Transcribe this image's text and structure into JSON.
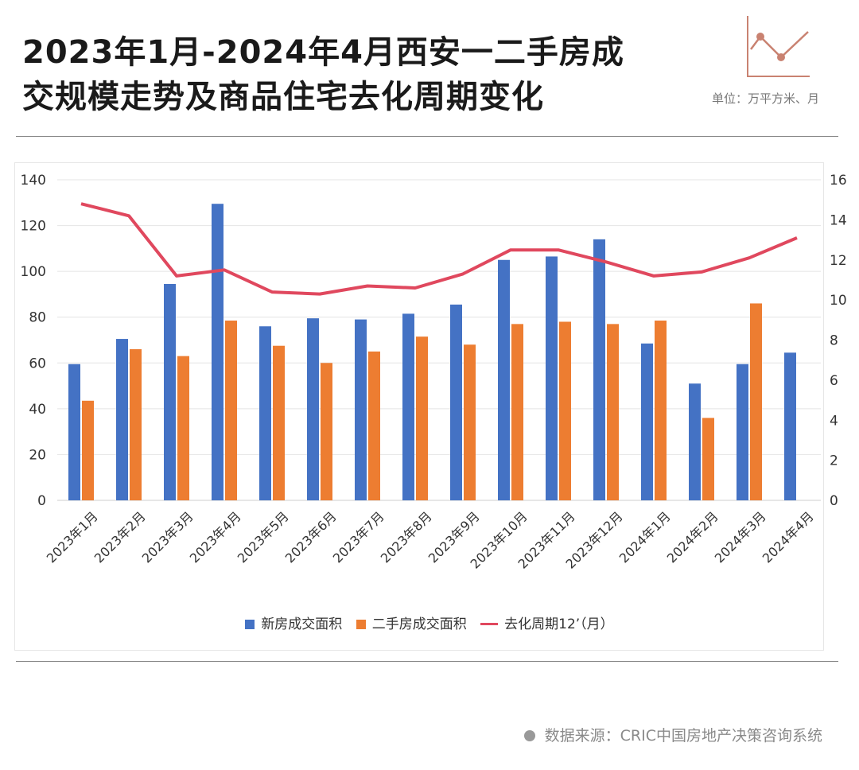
{
  "header": {
    "title_line1": "2023年1月-2024年4月西安一二手房成",
    "title_line2": "交规模走势及商品住宅去化周期变化",
    "unit": "单位：万平方米、月"
  },
  "colors": {
    "new_bar": "#4472c4",
    "second_bar": "#ed7d31",
    "line": "#e0485e",
    "logo": "#c98271"
  },
  "chart_data": {
    "type": "bar",
    "categories": [
      "2023年1月",
      "2023年2月",
      "2023年3月",
      "2023年4月",
      "2023年5月",
      "2023年6月",
      "2023年7月",
      "2023年8月",
      "2023年9月",
      "2023年10月",
      "2023年11月",
      "2023年12月",
      "2024年1月",
      "2024年2月",
      "2024年3月",
      "2024年4月"
    ],
    "series": [
      {
        "name": "新房成交面积",
        "type": "bar",
        "axis": "left",
        "values": [
          59.5,
          70.5,
          94.5,
          129.5,
          76,
          79.5,
          79,
          81.5,
          85.5,
          105,
          106.5,
          114,
          68.5,
          51,
          59.5,
          64.5
        ]
      },
      {
        "name": "二手房成交面积",
        "type": "bar",
        "axis": "left",
        "values": [
          43.5,
          66,
          63,
          78.5,
          67.5,
          60,
          65,
          71.5,
          68,
          77,
          78,
          77,
          78.5,
          36,
          86,
          null
        ]
      },
      {
        "name": "去化周期12’（月）",
        "type": "line",
        "axis": "right",
        "values": [
          14.8,
          14.2,
          11.2,
          11.5,
          10.4,
          10.3,
          10.7,
          10.6,
          11.3,
          12.5,
          12.5,
          11.9,
          11.2,
          11.4,
          12.1,
          13.1
        ]
      }
    ],
    "y_left": {
      "min": 0,
      "max": 140,
      "ticks": [
        0,
        20,
        40,
        60,
        80,
        100,
        120,
        140
      ]
    },
    "y_right": {
      "min": 0,
      "max": 16,
      "ticks": [
        0,
        2,
        4,
        6,
        8,
        10,
        12,
        14,
        16
      ]
    },
    "grid": true,
    "legend_position": "bottom"
  },
  "legend": {
    "new_label": "新房成交面积",
    "second_label": "二手房成交面积",
    "line_label": "去化周期12’（月）"
  },
  "footer": {
    "source": "数据来源：CRIC中国房地产决策咨询系统"
  }
}
